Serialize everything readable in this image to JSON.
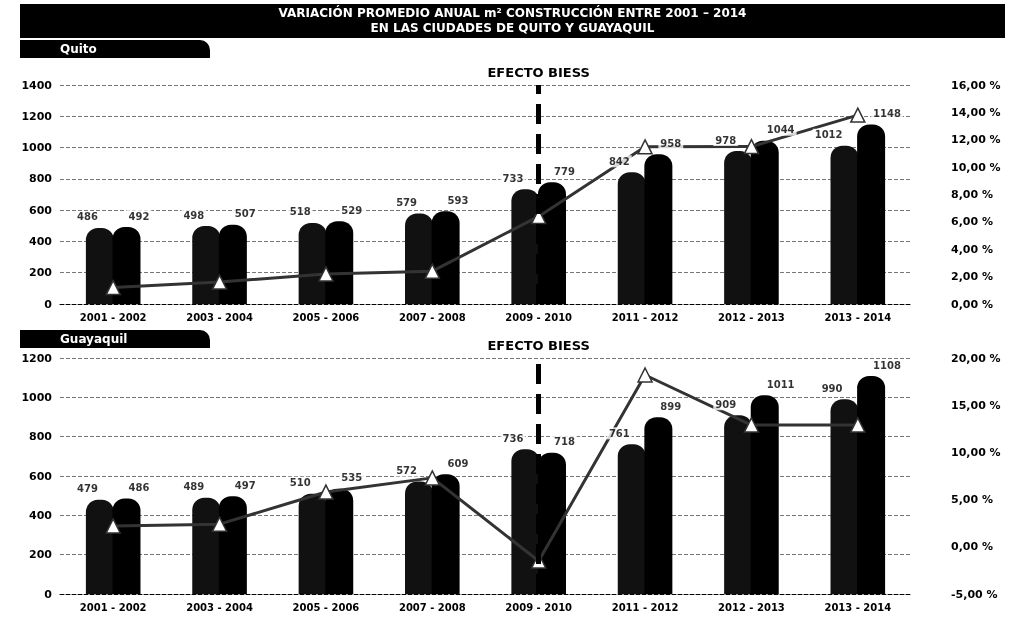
{
  "chart_data": [
    {
      "type": "bar",
      "title": "VARIACIÓN PROMEDIO ANUAL m² CONSTRUCCIÓN ENTRE 2001 – 2014\nEN LAS CIUDADES DE QUITO Y GUAYAQUIL",
      "subtitle": "Quito",
      "categories": [
        "2001 - 2002",
        "2003 - 2004",
        "2005 - 2006",
        "2007 - 2008",
        "2009 - 2010",
        "2011 - 2012",
        "2012 - 2013",
        "2013 - 2014"
      ],
      "series": [
        {
          "color": "#111111",
          "values": [
            486,
            498,
            518,
            579,
            733,
            842,
            978,
            1012
          ],
          "value_labels": [
            "486",
            "498",
            "518",
            "579",
            "733",
            "842",
            "978",
            "1012"
          ]
        },
        {
          "color": "#000000",
          "values": [
            492,
            507,
            529,
            593,
            779,
            958,
            1044,
            1148
          ],
          "value_labels": [
            "492",
            "507",
            "529",
            "593",
            "779",
            "958",
            "1044",
            "1148"
          ]
        },
        {
          "type": "line",
          "axis": "y2",
          "color": "#333333",
          "marker": "triangle",
          "values": [
            1.2,
            1.6,
            2.2,
            2.4,
            6.4,
            11.48,
            11.5,
            13.8
          ]
        }
      ],
      "ylim": [
        0,
        1400
      ],
      "yticks": [
        0,
        200,
        400,
        600,
        800,
        1000,
        1200,
        1400
      ],
      "y2lim": [
        0,
        16
      ],
      "y2ticks": [
        {
          "value": 0,
          "label": "0,00 %"
        },
        {
          "value": 2,
          "label": "2,00 %"
        },
        {
          "value": 4,
          "label": "4,00 %"
        },
        {
          "value": 6,
          "label": "6,00 %"
        },
        {
          "value": 8,
          "label": "8,00 %"
        },
        {
          "value": 10,
          "label": "10,00 %"
        },
        {
          "value": 12,
          "label": "12,00 %"
        },
        {
          "value": 14,
          "label": "14,00 %"
        },
        {
          "value": 16,
          "label": "16,00 %"
        }
      ],
      "ref_lines": [
        {
          "axis": "x",
          "value": "2009 - 2010",
          "label": "EFECTO BIESS",
          "line_style": "dashed",
          "color": "#000000"
        }
      ],
      "grid": "y"
    },
    {
      "type": "bar",
      "subtitle": "Guayaquil",
      "categories": [
        "2001 - 2002",
        "2003 - 2004",
        "2005 - 2006",
        "2007 - 2008",
        "2009 - 2010",
        "2011 - 2012",
        "2012 - 2013",
        "2013 - 2014"
      ],
      "series": [
        {
          "color": "#111111",
          "values": [
            479,
            489,
            510,
            572,
            736,
            761,
            909,
            990
          ],
          "value_labels": [
            "479",
            "489",
            "510",
            "572",
            "736",
            "761",
            "909",
            "990"
          ]
        },
        {
          "color": "#000000",
          "values": [
            486,
            497,
            535,
            609,
            718,
            899,
            1011,
            1108
          ],
          "value_labels": [
            "486",
            "497",
            "535",
            "609",
            "718",
            "899",
            "1011",
            "1108"
          ]
        },
        {
          "type": "line",
          "axis": "y2",
          "color": "#333333",
          "marker": "triangle",
          "values": [
            2.2,
            2.4,
            5.8,
            7.3,
            -1.5,
            18.2,
            12.9,
            12.9
          ]
        }
      ],
      "ylim": [
        0,
        1200
      ],
      "yticks": [
        0,
        200,
        400,
        600,
        800,
        1000,
        1200
      ],
      "y2lim": [
        -5,
        20
      ],
      "y2ticks": [
        {
          "value": -5,
          "label": "-5,00 %"
        },
        {
          "value": 0,
          "label": "0,00 %"
        },
        {
          "value": 5,
          "label": "5,00 %"
        },
        {
          "value": 10,
          "label": "10,00 %"
        },
        {
          "value": 15,
          "label": "15,00 %"
        },
        {
          "value": 20,
          "label": "20,00 %"
        }
      ],
      "ref_lines": [
        {
          "axis": "x",
          "value": "2009 - 2010",
          "label": "EFECTO BIESS",
          "line_style": "dashed",
          "color": "#000000"
        }
      ],
      "grid": "y"
    }
  ]
}
